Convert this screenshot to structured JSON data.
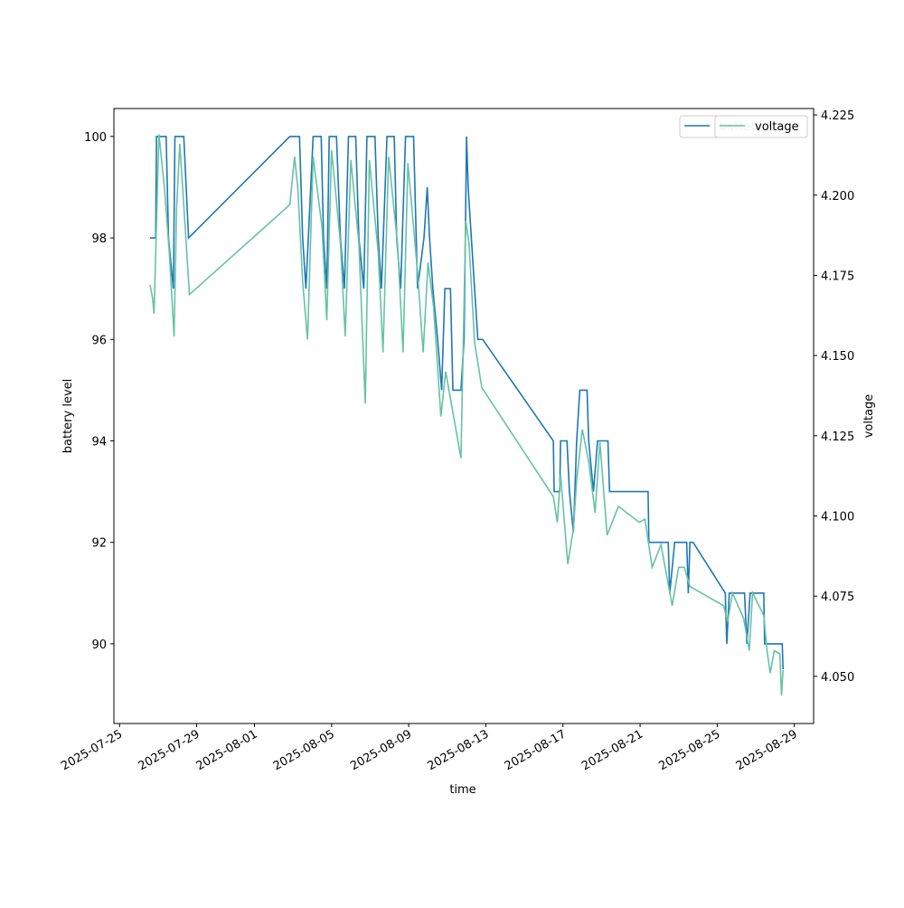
{
  "chart_data": {
    "type": "line",
    "xlabel": "time",
    "ylabel": "battery level",
    "y2label": "voltage",
    "xlim": [
      "2025-07-24T17:00",
      "2025-08-30T00:00"
    ],
    "xticks": [
      "2025-07-25",
      "2025-07-29",
      "2025-08-01",
      "2025-08-05",
      "2025-08-09",
      "2025-08-13",
      "2025-08-17",
      "2025-08-21",
      "2025-08-25",
      "2025-08-29"
    ],
    "ylim": [
      88.43,
      100.55
    ],
    "yticks": [
      90,
      92,
      94,
      96,
      98,
      100
    ],
    "y2lim": [
      4.0353,
      4.227
    ],
    "y2ticks": [
      {
        "value": 4.05,
        "label": "4.050"
      },
      {
        "value": 4.075,
        "label": "4.075"
      },
      {
        "value": 4.1,
        "label": "4.100"
      },
      {
        "value": 4.125,
        "label": "4.125"
      },
      {
        "value": 4.15,
        "label": "4.150"
      },
      {
        "value": 4.175,
        "label": "4.175"
      },
      {
        "value": 4.2,
        "label": "4.200"
      },
      {
        "value": 4.225,
        "label": "4.225"
      }
    ],
    "legend": "upper right",
    "series": [
      {
        "name": "battery level",
        "color": "#1f77b4",
        "axis": "y",
        "x": [
          "2025-07-26T14:00",
          "2025-07-26T21:00",
          "2025-07-26T22:00",
          "2025-07-27T10:00",
          "2025-07-27T13:00",
          "2025-07-27T19:00",
          "2025-07-27T21:00",
          "2025-07-28T08:00",
          "2025-07-28T14:00",
          "2025-08-02T20:00",
          "2025-08-03T08:00",
          "2025-08-03T12:00",
          "2025-08-03T16:00",
          "2025-08-04T01:00",
          "2025-08-04T11:00",
          "2025-08-04T14:00",
          "2025-08-04T18:00",
          "2025-08-04T21:00",
          "2025-08-05T06:00",
          "2025-08-05T11:00",
          "2025-08-05T16:00",
          "2025-08-05T21:00",
          "2025-08-06T06:00",
          "2025-08-06T10:00",
          "2025-08-06T16:00",
          "2025-08-06T20:00",
          "2025-08-07T06:00",
          "2025-08-07T10:00",
          "2025-08-07T14:00",
          "2025-08-07T21:00",
          "2025-08-08T06:00",
          "2025-08-08T09:00",
          "2025-08-08T14:00",
          "2025-08-08T20:00",
          "2025-08-09T06:00",
          "2025-08-09T11:00",
          "2025-08-09T19:00",
          "2025-08-09T23:00",
          "2025-08-10T02:00",
          "2025-08-10T06:00",
          "2025-08-10T12:00",
          "2025-08-10T17:00",
          "2025-08-10T21:00",
          "2025-08-11T04:00",
          "2025-08-11T07:00",
          "2025-08-11T17:00",
          "2025-08-11T21:00",
          "2025-08-12T00:00",
          "2025-08-12T02:00",
          "2025-08-12T06:00",
          "2025-08-12T10:00",
          "2025-08-12T14:00",
          "2025-08-12T20:00",
          "2025-08-16T12:00",
          "2025-08-16T13:00",
          "2025-08-16T20:00",
          "2025-08-16T21:00",
          "2025-08-17T05:00",
          "2025-08-17T08:00",
          "2025-08-17T13:00",
          "2025-08-17T17:00",
          "2025-08-17T21:00",
          "2025-08-18T06:00",
          "2025-08-18T08:00",
          "2025-08-18T14:00",
          "2025-08-18T19:00",
          "2025-08-19T08:00",
          "2025-08-19T10:00",
          "2025-08-21T10:00",
          "2025-08-21T11:00",
          "2025-08-22T11:00",
          "2025-08-22T13:00",
          "2025-08-22T19:00",
          "2025-08-23T10:00",
          "2025-08-23T12:00",
          "2025-08-23T14:00",
          "2025-08-23T18:00",
          "2025-08-25T10:00",
          "2025-08-25T12:00",
          "2025-08-25T15:00",
          "2025-08-26T10:00",
          "2025-08-26T13:00",
          "2025-08-26T17:00",
          "2025-08-27T10:00",
          "2025-08-27T11:00",
          "2025-08-28T09:00",
          "2025-08-28T10:00"
        ],
        "values": [
          98,
          98,
          100,
          100,
          98,
          97,
          100,
          100,
          98,
          100,
          100,
          98,
          97,
          100,
          100,
          98,
          97,
          100,
          100,
          98,
          97,
          100,
          100,
          98,
          97,
          100,
          100,
          98,
          97,
          100,
          100,
          98,
          97,
          100,
          100,
          97,
          98,
          99,
          98,
          97,
          96,
          95,
          97,
          97,
          95,
          95,
          96,
          100,
          99,
          98,
          97,
          96,
          96,
          94,
          93,
          93,
          94,
          94,
          93,
          92.2,
          94,
          95,
          95,
          94,
          93,
          94,
          94,
          93,
          93,
          92,
          92,
          91,
          92,
          92,
          91,
          92,
          92,
          91,
          90,
          91,
          91,
          90,
          91,
          91,
          90,
          90,
          89.5
        ]
      },
      {
        "name": "voltage",
        "color": "#66c2a5",
        "axis": "y2",
        "x": [
          "2025-07-26T14:00",
          "2025-07-26T17:00",
          "2025-07-26T19:00",
          "2025-07-27T01:00",
          "2025-07-27T08:00",
          "2025-07-27T14:00",
          "2025-07-27T20:00",
          "2025-07-27T23:00",
          "2025-07-28T03:00",
          "2025-07-28T11:00",
          "2025-07-28T15:00",
          "2025-08-02T20:00",
          "2025-08-03T02:00",
          "2025-08-03T06:00",
          "2025-08-03T12:00",
          "2025-08-03T18:00",
          "2025-08-04T01:00",
          "2025-08-04T12:00",
          "2025-08-04T18:00",
          "2025-08-05T00:00",
          "2025-08-05T11:00",
          "2025-08-05T17:00",
          "2025-08-06T00:00",
          "2025-08-06T10:00",
          "2025-08-06T18:00",
          "2025-08-06T23:00",
          "2025-08-07T10:00",
          "2025-08-07T16:00",
          "2025-08-07T23:00",
          "2025-08-08T10:00",
          "2025-08-08T17:00",
          "2025-08-08T23:00",
          "2025-08-09T11:00",
          "2025-08-09T18:00",
          "2025-08-10T00:00",
          "2025-08-10T07:00",
          "2025-08-10T16:00",
          "2025-08-10T22:00",
          "2025-08-11T10:00",
          "2025-08-11T17:00",
          "2025-08-11T23:00",
          "2025-08-12T03:00",
          "2025-08-12T10:00",
          "2025-08-12T19:00",
          "2025-08-16T12:00",
          "2025-08-16T17:00",
          "2025-08-16T21:00",
          "2025-08-17T06:00",
          "2025-08-17T13:00",
          "2025-08-17T17:00",
          "2025-08-18T00:00",
          "2025-08-18T08:00",
          "2025-08-18T16:00",
          "2025-08-18T22:00",
          "2025-08-19T07:00",
          "2025-08-19T21:00",
          "2025-08-20T23:00",
          "2025-08-21T06:00",
          "2025-08-21T15:00",
          "2025-08-22T02:00",
          "2025-08-22T16:00",
          "2025-08-23T00:00",
          "2025-08-23T07:00",
          "2025-08-23T14:00",
          "2025-08-25T08:00",
          "2025-08-25T13:00",
          "2025-08-25T19:00",
          "2025-08-26T09:00",
          "2025-08-26T16:00",
          "2025-08-26T20:00",
          "2025-08-27T10:00",
          "2025-08-27T14:00",
          "2025-08-27T18:00",
          "2025-08-27T23:00",
          "2025-08-28T06:00",
          "2025-08-28T08:00",
          "2025-08-28T10:00"
        ],
        "values": [
          4.172,
          4.168,
          4.163,
          4.219,
          4.202,
          4.182,
          4.156,
          4.196,
          4.216,
          4.185,
          4.169,
          4.197,
          4.212,
          4.202,
          4.173,
          4.155,
          4.212,
          4.19,
          4.161,
          4.214,
          4.185,
          4.156,
          4.211,
          4.185,
          4.135,
          4.211,
          4.182,
          4.151,
          4.212,
          4.185,
          4.151,
          4.21,
          4.176,
          4.151,
          4.179,
          4.165,
          4.131,
          4.145,
          4.128,
          4.118,
          4.192,
          4.185,
          4.154,
          4.14,
          4.106,
          4.098,
          4.113,
          4.085,
          4.096,
          4.111,
          4.127,
          4.117,
          4.101,
          4.123,
          4.094,
          4.103,
          4.098,
          4.099,
          4.084,
          4.091,
          4.072,
          4.084,
          4.084,
          4.078,
          4.072,
          4.067,
          4.076,
          4.068,
          4.058,
          4.076,
          4.069,
          4.058,
          4.051,
          4.058,
          4.057,
          4.044,
          4.052
        ]
      }
    ]
  }
}
